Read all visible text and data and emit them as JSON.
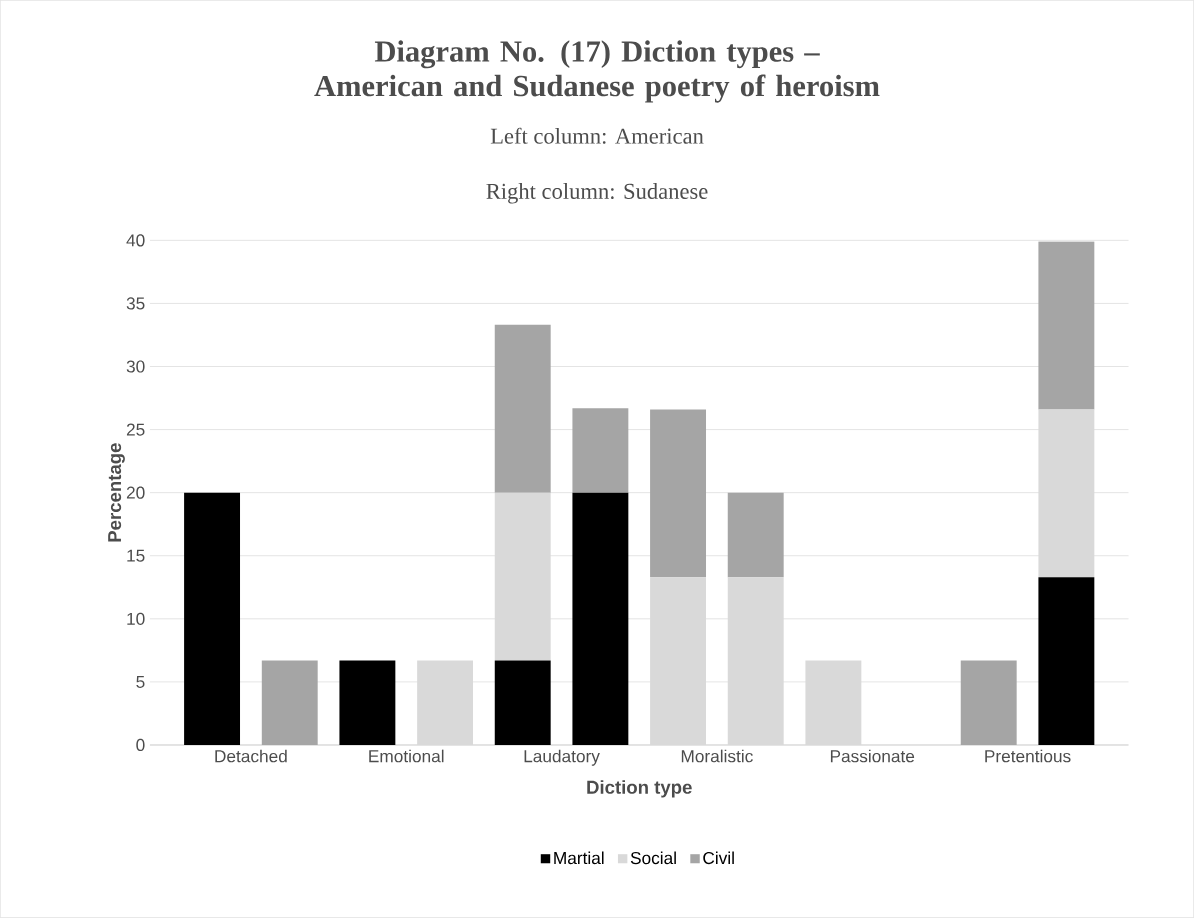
{
  "chart_data": {
    "type": "bar",
    "stacked": true,
    "title": "Diagram No. (17) Diction types – American and Sudanese poetry of heroism",
    "subtitle": "Left column: American",
    "annotations": [
      "Right column: Sudanese"
    ],
    "xlabel": "Diction type",
    "ylabel": "Percentage",
    "categories": [
      "Detached",
      null,
      "Emotional",
      null,
      "Laudatory",
      null,
      "Moralistic",
      null,
      "Passionate",
      null,
      "Pretentious",
      null
    ],
    "series": [
      {
        "name": "Martial",
        "color": "#000000",
        "values": [
          20,
          null,
          6.7,
          null,
          6.7,
          20,
          null,
          null,
          null,
          null,
          null,
          13.3
        ]
      },
      {
        "name": "Social",
        "color": "#d9d9d9",
        "values": [
          null,
          null,
          null,
          6.7,
          13.3,
          null,
          13.3,
          13.3,
          6.7,
          null,
          null,
          13.3
        ]
      },
      {
        "name": "Civil",
        "color": "#a5a5a5",
        "values": [
          null,
          6.7,
          null,
          null,
          13.3,
          6.7,
          13.3,
          6.7,
          null,
          null,
          6.7,
          13.3
        ]
      }
    ],
    "ylim": [
      0,
      40
    ],
    "yticks": [
      0,
      5,
      10,
      15,
      20,
      25,
      30,
      35,
      40
    ],
    "grid": "y",
    "legend": "bottom"
  }
}
